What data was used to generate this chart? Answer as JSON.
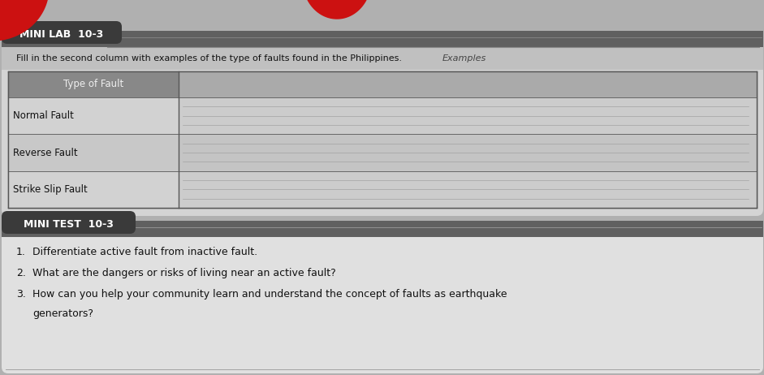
{
  "background_color": "#b8b8b8",
  "mini_lab_label": "MINI LAB  10-3",
  "mini_lab_bg": "#3a3a3a",
  "mini_lab_text_color": "#ffffff",
  "instruction_text": "Fill in the second column with examples of the type of faults found in the Philippines.",
  "examples_label": "Examples",
  "col1_header": "Type of Fault",
  "col1_header_bg": "#888888",
  "col1_header_text": "#ffffff",
  "rows": [
    "Normal Fault",
    "Reverse Fault",
    "Strike Slip Fault"
  ],
  "mini_test_label": "MINI TEST  10-3",
  "mini_test_bg": "#3a3a3a",
  "mini_test_text_color": "#ffffff",
  "questions": [
    "Differentiate active fault from inactive fault.",
    "What are the dangers or risks of living near an active fault?",
    "How can you help your community learn and understand the concept of faults as earthquake",
    "generators?"
  ],
  "card_bg": "#d4d4d4",
  "card_bg2": "#e0e0e0",
  "outer_bg": "#b0b0b0",
  "header_bar_color": "#b8b8b8",
  "red_blob": "#cc1111"
}
